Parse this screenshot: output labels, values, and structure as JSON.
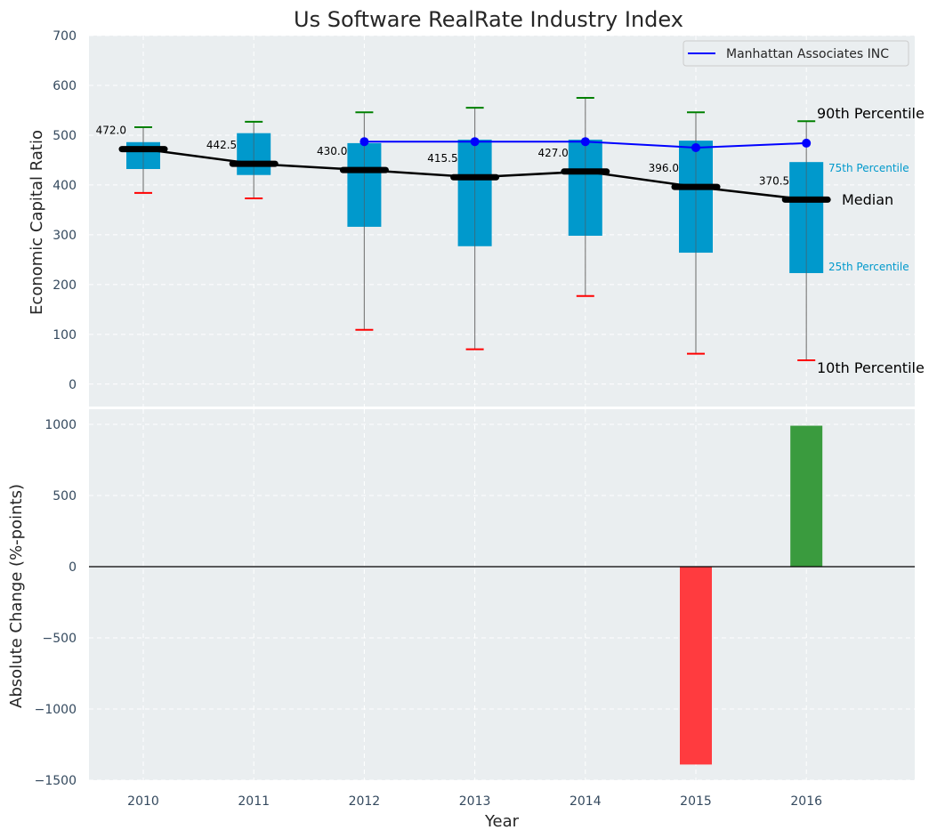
{
  "chart_data": [
    {
      "panel": "top",
      "type": "box",
      "title": "Us Software RealRate Industry Index",
      "xlabel": "",
      "ylabel": "Economic Capital Ratio",
      "ylim": [
        -45,
        700
      ],
      "yticks": [
        0,
        100,
        200,
        300,
        400,
        500,
        600,
        700
      ],
      "grid": true,
      "categories": [
        "2010",
        "2011",
        "2012",
        "2013",
        "2014",
        "2015",
        "2016"
      ],
      "percentiles": {
        "p10": [
          384,
          373,
          109,
          70,
          177,
          61,
          48
        ],
        "p25": [
          432,
          420,
          316,
          277,
          298,
          264,
          223
        ],
        "median": [
          472.0,
          442.5,
          430.0,
          415.5,
          427.0,
          396.0,
          370.5
        ],
        "p75": [
          486,
          504,
          484,
          491,
          491,
          489,
          446
        ],
        "p90": [
          516,
          527,
          546,
          555,
          575,
          546,
          528
        ]
      },
      "median_labels": [
        "472.0",
        "442.5",
        "430.0",
        "415.5",
        "427.0",
        "396.0",
        "370.5"
      ],
      "series": [
        {
          "name": "Manhattan Associates INC",
          "type": "line",
          "x": [
            "2012",
            "2013",
            "2014",
            "2015",
            "2016"
          ],
          "values": [
            487,
            487,
            487,
            475,
            484
          ],
          "color": "#0000ff"
        }
      ],
      "legend": {
        "entries": [
          "Manhattan Associates INC"
        ],
        "placement": "top-right"
      },
      "annotations": {
        "p90": "90th Percentile",
        "p75": "75th Percentile",
        "median": "Median",
        "p25": "25th Percentile",
        "p10": "10th Percentile"
      },
      "colors": {
        "box": "#0099cc",
        "median": "#000000",
        "p90_cap": "#008000",
        "p10_cap": "#ff0000",
        "whisker": "#808080",
        "annot_quartile": "#0099cc",
        "background": "#eaeef0"
      }
    },
    {
      "panel": "bottom",
      "type": "bar",
      "xlabel": "Year",
      "ylabel": "Absolute Change (%-points)",
      "ylim": [
        -1500,
        1106
      ],
      "yticks": [
        -1500,
        -1000,
        -500,
        0,
        500,
        1000
      ],
      "ytick_labels": [
        "−1500",
        "−1000",
        "−500",
        "0",
        "500",
        "1000"
      ],
      "grid": true,
      "categories": [
        "2010",
        "2011",
        "2012",
        "2013",
        "2014",
        "2015",
        "2016"
      ],
      "values": [
        0,
        0,
        0,
        0,
        0,
        -1390,
        990
      ],
      "colors": {
        "positive": "#3a9b3e",
        "negative": "#ff3b3f",
        "zero_line": "#000000",
        "background": "#eaeef0"
      }
    }
  ]
}
